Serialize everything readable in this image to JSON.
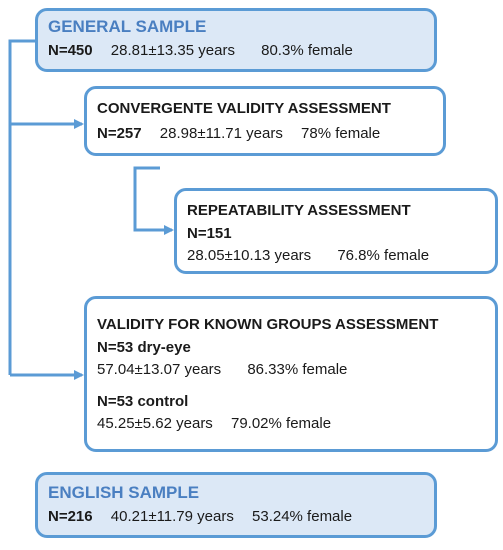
{
  "general": {
    "title": "GENERAL SAMPLE",
    "n": "N=450",
    "age": "28.81±13.35 years",
    "female": "80.3% female"
  },
  "convergent": {
    "title": "CONVERGENTE VALIDITY ASSESSMENT",
    "n": "N=257",
    "age": "28.98±11.71 years",
    "female": "78% female"
  },
  "repeatability": {
    "title": "REPEATABILITY ASSESSMENT",
    "n": "N=151",
    "age": "28.05±10.13 years",
    "female": "76.8% female"
  },
  "known_groups": {
    "title": "VALIDITY FOR KNOWN GROUPS ASSESSMENT",
    "dry_eye": {
      "n": "N=53 dry-eye",
      "age": "57.04±13.07 years",
      "female": "86.33% female"
    },
    "control": {
      "n": "N=53 control",
      "age": "45.25±5.62 years",
      "female": "79.02% female"
    }
  },
  "english": {
    "title": "ENGLISH SAMPLE",
    "n": "N=216",
    "age": "40.21±11.79 years",
    "female": "53.24% female"
  },
  "colors": {
    "border": "#5b9bd5",
    "fill": "#dce8f6",
    "title_blue": "#4a7fc1"
  }
}
